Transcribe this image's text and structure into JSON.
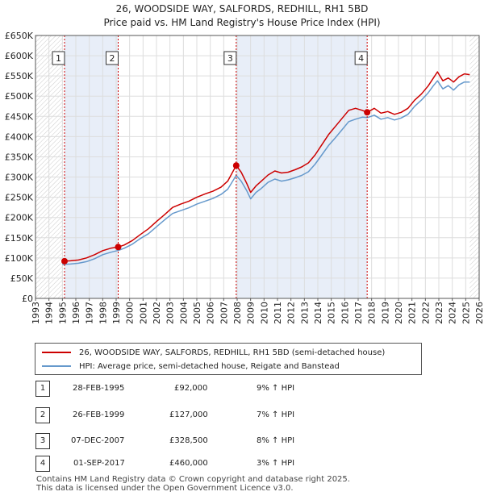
{
  "chart_data": {
    "type": "line",
    "title": "26, WOODSIDE WAY, SALFORDS, REDHILL, RH1 5BD",
    "subtitle": "Price paid vs. HM Land Registry's House Price Index (HPI)",
    "xlim": [
      1993,
      2026
    ],
    "ylim": [
      0,
      650000
    ],
    "x_ticks": [
      "1993",
      "1994",
      "1995",
      "1996",
      "1997",
      "1998",
      "1999",
      "2000",
      "2001",
      "2002",
      "2003",
      "2004",
      "2005",
      "2006",
      "2007",
      "2008",
      "2009",
      "2010",
      "2011",
      "2012",
      "2013",
      "2014",
      "2015",
      "2016",
      "2017",
      "2018",
      "2019",
      "2020",
      "2021",
      "2022",
      "2023",
      "2024",
      "2025",
      "2026"
    ],
    "y_ticks": [
      {
        "value": 0,
        "label": "£0"
      },
      {
        "value": 50000,
        "label": "£50K"
      },
      {
        "value": 100000,
        "label": "£100K"
      },
      {
        "value": 150000,
        "label": "£150K"
      },
      {
        "value": 200000,
        "label": "£200K"
      },
      {
        "value": 250000,
        "label": "£250K"
      },
      {
        "value": 300000,
        "label": "£300K"
      },
      {
        "value": 350000,
        "label": "£350K"
      },
      {
        "value": 400000,
        "label": "£400K"
      },
      {
        "value": 450000,
        "label": "£450K"
      },
      {
        "value": 500000,
        "label": "£500K"
      },
      {
        "value": 550000,
        "label": "£550K"
      },
      {
        "value": 600000,
        "label": "£600K"
      },
      {
        "value": 650000,
        "label": "£650K"
      }
    ],
    "series": [
      {
        "name": "26, WOODSIDE WAY, SALFORDS, REDHILL, RH1 5BD (semi-detached house)",
        "color": "#cc0000",
        "x": [
          1995.16,
          1995.6,
          1996.2,
          1996.8,
          1997.4,
          1998.0,
          1998.6,
          1999.15,
          1999.6,
          2000.2,
          2000.8,
          2001.4,
          2002.0,
          2002.6,
          2003.2,
          2003.8,
          2004.4,
          2005.0,
          2005.6,
          2006.2,
          2006.8,
          2007.3,
          2007.93,
          2008.3,
          2008.7,
          2009.0,
          2009.4,
          2009.8,
          2010.3,
          2010.8,
          2011.3,
          2011.8,
          2012.3,
          2012.8,
          2013.3,
          2013.8,
          2014.3,
          2014.8,
          2015.3,
          2015.8,
          2016.3,
          2016.8,
          2017.3,
          2017.67,
          2018.2,
          2018.7,
          2019.2,
          2019.7,
          2020.2,
          2020.7,
          2021.2,
          2021.7,
          2022.2,
          2022.6,
          2022.9,
          2023.3,
          2023.7,
          2024.1,
          2024.5,
          2024.9,
          2025.3
        ],
        "values": [
          92000,
          93000,
          95000,
          100000,
          108000,
          118000,
          124000,
          127000,
          132000,
          143000,
          158000,
          172000,
          190000,
          207000,
          225000,
          233000,
          240000,
          250000,
          258000,
          265000,
          275000,
          290000,
          328500,
          312000,
          285000,
          262000,
          278000,
          290000,
          305000,
          315000,
          310000,
          312000,
          318000,
          325000,
          335000,
          355000,
          380000,
          405000,
          425000,
          445000,
          465000,
          470000,
          465000,
          460000,
          470000,
          458000,
          462000,
          455000,
          460000,
          470000,
          490000,
          505000,
          525000,
          545000,
          560000,
          538000,
          545000,
          535000,
          548000,
          555000,
          553000
        ]
      },
      {
        "name": "HPI: Average price, semi-detached house, Reigate and Banstead",
        "color": "#6699cc",
        "x": [
          1995.0,
          1995.6,
          1996.2,
          1996.8,
          1997.4,
          1998.0,
          1998.6,
          1999.2,
          1999.6,
          2000.2,
          2000.8,
          2001.4,
          2002.0,
          2002.6,
          2003.2,
          2003.8,
          2004.4,
          2005.0,
          2005.6,
          2006.2,
          2006.8,
          2007.3,
          2007.93,
          2008.3,
          2008.7,
          2009.0,
          2009.4,
          2009.8,
          2010.3,
          2010.8,
          2011.3,
          2011.8,
          2012.3,
          2012.8,
          2013.3,
          2013.8,
          2014.3,
          2014.8,
          2015.3,
          2015.8,
          2016.3,
          2016.8,
          2017.3,
          2017.7,
          2018.2,
          2018.7,
          2019.2,
          2019.7,
          2020.2,
          2020.7,
          2021.2,
          2021.7,
          2022.2,
          2022.6,
          2022.9,
          2023.3,
          2023.7,
          2024.1,
          2024.5,
          2024.9,
          2025.3
        ],
        "values": [
          84000,
          85000,
          87000,
          91000,
          98000,
          108000,
          114000,
          119000,
          124000,
          134000,
          148000,
          160000,
          177000,
          194000,
          210000,
          217000,
          224000,
          233000,
          240000,
          247000,
          257000,
          270000,
          304000,
          290000,
          267000,
          246000,
          262000,
          272000,
          287000,
          295000,
          290000,
          293000,
          298000,
          304000,
          313000,
          332000,
          355000,
          378000,
          397000,
          417000,
          437000,
          443000,
          448000,
          447000,
          453000,
          443000,
          447000,
          441000,
          446000,
          455000,
          475000,
          490000,
          508000,
          526000,
          538000,
          518000,
          526000,
          515000,
          528000,
          535000,
          535000
        ]
      }
    ],
    "sales": [
      {
        "num": "1",
        "year": 1995.16,
        "value": 92000,
        "date": "28-FEB-1995",
        "price": "£92,000",
        "hpi": "9% ↑ HPI"
      },
      {
        "num": "2",
        "year": 1999.15,
        "value": 127000,
        "date": "26-FEB-1999",
        "price": "£127,000",
        "hpi": "7% ↑ HPI"
      },
      {
        "num": "3",
        "year": 2007.93,
        "value": 328500,
        "date": "07-DEC-2007",
        "price": "£328,500",
        "hpi": "8% ↑ HPI"
      },
      {
        "num": "4",
        "year": 2017.67,
        "value": 460000,
        "date": "01-SEP-2017",
        "price": "£460,000",
        "hpi": "3% ↑ HPI"
      }
    ],
    "hatch_before": 1995,
    "hatch_after": 2025.3
  },
  "footer": {
    "line1": "Contains HM Land Registry data © Crown copyright and database right 2025.",
    "line2": "This data is licensed under the Open Government Licence v3.0."
  }
}
